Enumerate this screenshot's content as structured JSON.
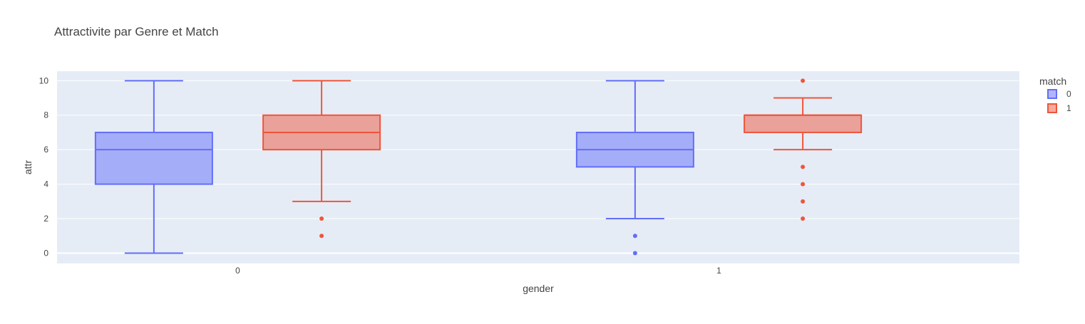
{
  "chart_data": {
    "type": "box",
    "title": "Attractivite par Genre et Match",
    "xlabel": "gender",
    "ylabel": "attr",
    "categories": [
      "0",
      "1"
    ],
    "ylim": [
      -0.6,
      10.55
    ],
    "yticks": [
      0,
      2,
      4,
      6,
      8,
      10
    ],
    "grid": true,
    "legend": {
      "title": "match",
      "placement": "top-right"
    },
    "series": [
      {
        "name": "0",
        "color": "#636efa",
        "boxes": [
          {
            "category": "0",
            "lowerfence": 0,
            "q1": 4,
            "median": 6,
            "q3": 7,
            "upperfence": 10,
            "outliers": []
          },
          {
            "category": "1",
            "lowerfence": 2,
            "q1": 5,
            "median": 6,
            "q3": 7,
            "upperfence": 10,
            "outliers": [
              1,
              0
            ]
          }
        ]
      },
      {
        "name": "1",
        "color": "#ef553b",
        "boxes": [
          {
            "category": "0",
            "lowerfence": 3,
            "q1": 6,
            "median": 7,
            "q3": 8,
            "upperfence": 10,
            "outliers": [
              2,
              1
            ]
          },
          {
            "category": "1",
            "lowerfence": 6,
            "q1": 7,
            "median": 8,
            "q3": 8,
            "upperfence": 9,
            "outliers": [
              10,
              5,
              4,
              3,
              2
            ]
          }
        ]
      }
    ]
  }
}
